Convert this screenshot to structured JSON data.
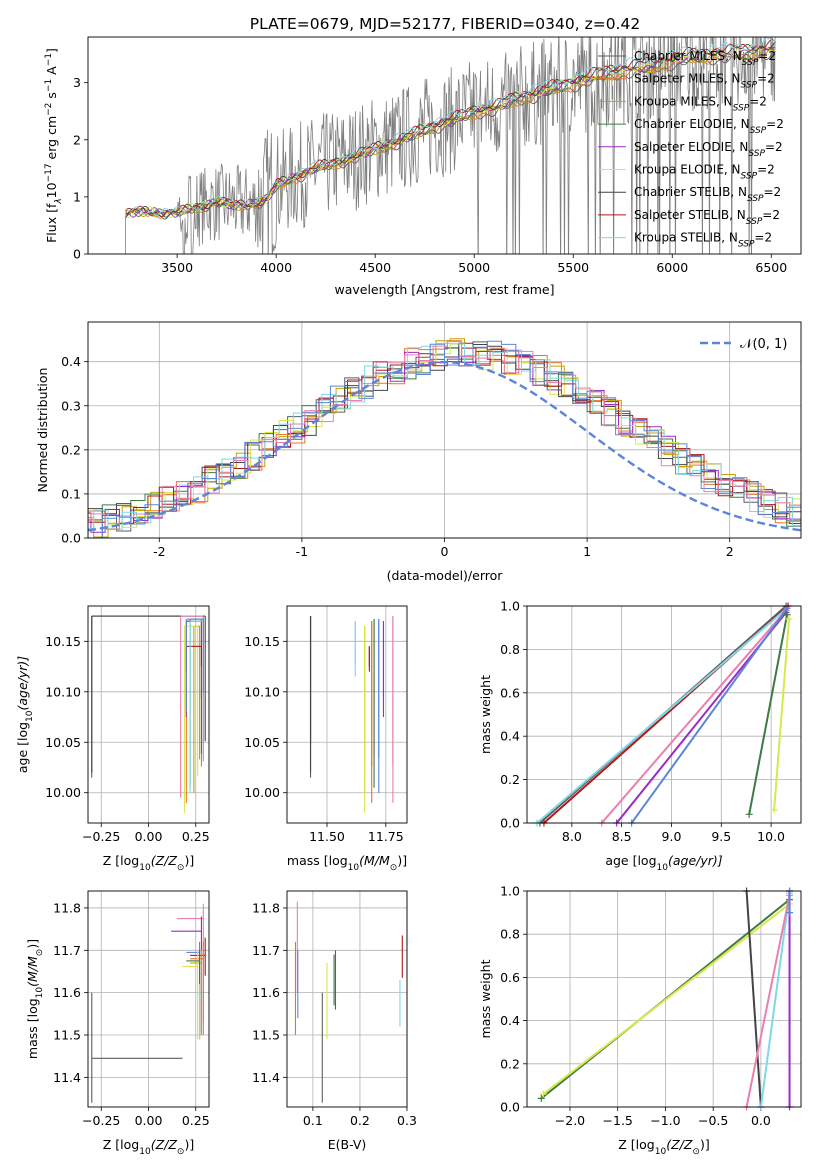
{
  "figure_title": "PLATE=0679, MJD=52177, FIBERID=0340, z=0.42",
  "colors": {
    "Chabrier MILES": "#5e5e5e",
    "Salpeter MILES": "#e8742c",
    "Kroupa MILES": "#c8a000",
    "Chabrier ELODIE": "#3c7a46",
    "Salpeter ELODIE": "#9a2cc4",
    "Kroupa ELODIE": "#d9e84a",
    "Chabrier STELIB": "#444444",
    "Salpeter STELIB": "#b01818",
    "Kroupa STELIB": "#7fd8e6",
    "Blue": "#5b86d8",
    "Pink": "#ea7fb0",
    "data": "#7f7f7f"
  },
  "chart_data": [
    {
      "id": "spectrum",
      "type": "line",
      "xlabel": "wavelength [Angstrom, rest frame]",
      "ylabel_main": "Flux [f",
      "ylabel_sub": "λ",
      "ylabel_rest": "10",
      "ylabel_sup": "−17",
      "ylabel_tail": " erg cm",
      "ylabel_sup2": "−2",
      "ylabel_mid2": " s",
      "ylabel_sup3": "−1",
      "ylabel_mid3": " A",
      "ylabel_sup4": "−1",
      "ylabel_end": "]",
      "xlim": [
        3050,
        6650
      ],
      "ylim": [
        0,
        3.8
      ],
      "xticks": [
        3500,
        4000,
        4500,
        5000,
        5500,
        6000,
        6500
      ],
      "yticks": [
        0,
        1,
        2,
        3
      ],
      "legend_placement": "upper right",
      "legend": [
        {
          "name": "Chabrier MILES",
          "suffix": "=2"
        },
        {
          "name": "Salpeter MILES",
          "suffix": "=2"
        },
        {
          "name": "Kroupa MILES",
          "suffix": "=2"
        },
        {
          "name": "Chabrier ELODIE",
          "suffix": "=2"
        },
        {
          "name": "Salpeter ELODIE",
          "suffix": "=2"
        },
        {
          "name": "Kroupa ELODIE",
          "suffix": "=2"
        },
        {
          "name": "Chabrier STELIB",
          "suffix": "=2"
        },
        {
          "name": "Salpeter STELIB",
          "suffix": "=2"
        },
        {
          "name": "Kroupa STELIB",
          "suffix": "=2"
        }
      ],
      "legend_n": "N",
      "legend_ssp": "SSP",
      "data_x_range": [
        3240,
        6520
      ],
      "model_anchors": [
        [
          3240,
          0.7
        ],
        [
          3300,
          0.75
        ],
        [
          3400,
          0.72
        ],
        [
          3500,
          0.72
        ],
        [
          3600,
          0.82
        ],
        [
          3700,
          0.9
        ],
        [
          3800,
          0.86
        ],
        [
          3900,
          0.88
        ],
        [
          3950,
          0.95
        ],
        [
          4000,
          1.2
        ],
        [
          4100,
          1.35
        ],
        [
          4200,
          1.5
        ],
        [
          4300,
          1.6
        ],
        [
          4400,
          1.7
        ],
        [
          4500,
          1.85
        ],
        [
          4600,
          1.95
        ],
        [
          4700,
          2.1
        ],
        [
          4800,
          2.25
        ],
        [
          4900,
          2.35
        ],
        [
          5000,
          2.5
        ],
        [
          5100,
          2.55
        ],
        [
          5200,
          2.7
        ],
        [
          5300,
          2.8
        ],
        [
          5400,
          2.9
        ],
        [
          5500,
          3.0
        ],
        [
          5600,
          3.1
        ],
        [
          5700,
          3.2
        ],
        [
          5800,
          3.25
        ],
        [
          5900,
          3.3
        ],
        [
          6000,
          3.4
        ],
        [
          6100,
          3.45
        ],
        [
          6200,
          3.5
        ],
        [
          6300,
          3.5
        ],
        [
          6400,
          3.55
        ],
        [
          6500,
          3.6
        ]
      ],
      "series_names": [
        "Chabrier MILES",
        "Salpeter MILES",
        "Kroupa MILES",
        "Chabrier ELODIE",
        "Salpeter ELODIE",
        "Kroupa ELODIE",
        "Chabrier STELIB",
        "Salpeter STELIB",
        "Kroupa STELIB"
      ]
    },
    {
      "id": "residuals",
      "type": "line",
      "xlabel": "(data-model)/error",
      "ylabel": "Normed distribution",
      "xlim": [
        -2.5,
        2.5
      ],
      "ylim": [
        0,
        0.49
      ],
      "xticks": [
        -2,
        -1,
        0,
        1,
        2
      ],
      "yticks": [
        0.0,
        0.1,
        0.2,
        0.3,
        0.4
      ],
      "grid": true,
      "legend_placement": "upper right",
      "legend_label": "𝒩(0, 1)",
      "gaussian": {
        "mean": 0,
        "sigma": 1
      },
      "hist_colors": [
        "Chabrier MILES",
        "Salpeter MILES",
        "Kroupa MILES",
        "Chabrier ELODIE",
        "Salpeter ELODIE",
        "Kroupa ELODIE",
        "Chabrier STELIB",
        "Salpeter STELIB",
        "Kroupa STELIB",
        "Blue",
        "Pink"
      ]
    },
    {
      "id": "age_vs_Z",
      "type": "scatter",
      "xlabel": "Z [log",
      "xlabel_sub": "10",
      "xlabel_rest": "(Z/Z",
      "xlabel_sub2": "⊙",
      "xlabel_end": ")]",
      "ylabel": "age  [log",
      "ylabel_sub": "10",
      "ylabel_rest": "(age/yr)]",
      "xlim": [
        -0.32,
        0.32
      ],
      "ylim": [
        9.97,
        10.185
      ],
      "xticks": [
        -0.25,
        0.0,
        0.25
      ],
      "xticklabels": [
        "−0.25",
        "0.00",
        "0.25"
      ],
      "yticks": [
        10.0,
        10.05,
        10.1,
        10.15
      ],
      "yticklabels": [
        "10.00",
        "10.05",
        "10.10",
        "10.15"
      ],
      "grid": true,
      "points": [
        {
          "c": "Chabrier MILES",
          "x": 0.29,
          "y": 10.175,
          "x0": -0.3,
          "y0": 10.015
        },
        {
          "c": "Salpeter MILES",
          "x": 0.28,
          "y": 10.17,
          "x0": 0.2,
          "y0": 9.99
        },
        {
          "c": "Kroupa MILES",
          "x": 0.27,
          "y": 10.165,
          "x0": 0.24,
          "y0": 10.0
        },
        {
          "c": "Chabrier ELODIE",
          "x": 0.28,
          "y": 10.172,
          "x0": 0.22,
          "y0": 10.005
        },
        {
          "c": "Salpeter ELODIE",
          "x": 0.28,
          "y": 10.17,
          "x0": 0.2,
          "y0": 10.075
        },
        {
          "c": "Kroupa ELODIE",
          "x": 0.26,
          "y": 10.165,
          "x0": 0.19,
          "y0": 9.98
        },
        {
          "c": "Chabrier STELIB",
          "x": 0.3,
          "y": 10.175,
          "x0": -0.3,
          "y0": 10.02
        },
        {
          "c": "Salpeter STELIB",
          "x": 0.28,
          "y": 10.145,
          "x0": 0.2,
          "y0": 10.12
        },
        {
          "c": "Kroupa STELIB",
          "x": 0.29,
          "y": 10.17,
          "x0": 0.22,
          "y0": 10.0
        },
        {
          "c": "Pink",
          "x": 0.29,
          "y": 10.175,
          "x0": 0.17,
          "y0": 9.995
        },
        {
          "c": "Blue",
          "x": 0.29,
          "y": 10.172,
          "x0": 0.2,
          "y0": 10.08
        }
      ]
    },
    {
      "id": "age_vs_mass",
      "type": "scatter",
      "xlabel": "mass [log",
      "xlabel_sub": "10",
      "xlabel_rest": "(M/M",
      "xlabel_sub2": "⊙",
      "xlabel_end": ")]",
      "xlim": [
        11.33,
        11.84
      ],
      "ylim": [
        9.97,
        10.185
      ],
      "xticks": [
        11.5,
        11.75
      ],
      "xticklabels": [
        "11.50",
        "11.75"
      ],
      "yticks": [
        10.0,
        10.05,
        10.1,
        10.15
      ],
      "yticklabels": [
        "10.00",
        "10.05",
        "10.10",
        "10.15"
      ],
      "grid": true,
      "points": [
        {
          "c": "Chabrier MILES",
          "x": 11.43,
          "y": 10.175,
          "x0": 11.43,
          "y0": 10.015
        },
        {
          "c": "Salpeter MILES",
          "x": 11.69,
          "y": 10.17,
          "x0": 11.69,
          "y0": 9.99
        },
        {
          "c": "Kroupa MILES",
          "x": 11.66,
          "y": 10.165,
          "x0": 11.66,
          "y0": 10.0
        },
        {
          "c": "Chabrier ELODIE",
          "x": 11.7,
          "y": 10.172,
          "x0": 11.7,
          "y0": 10.005
        },
        {
          "c": "Salpeter ELODIE",
          "x": 11.74,
          "y": 10.17,
          "x0": 11.74,
          "y0": 10.075
        },
        {
          "c": "Kroupa ELODIE",
          "x": 11.66,
          "y": 10.165,
          "x0": 11.66,
          "y0": 9.98
        },
        {
          "c": "Chabrier STELIB",
          "x": 11.43,
          "y": 10.175,
          "x0": 11.43,
          "y0": 10.02
        },
        {
          "c": "Salpeter STELIB",
          "x": 11.68,
          "y": 10.145,
          "x0": 11.68,
          "y0": 10.12
        },
        {
          "c": "Kroupa STELIB",
          "x": 11.62,
          "y": 10.17,
          "x0": 11.62,
          "y0": 10.115
        },
        {
          "c": "Pink",
          "x": 11.78,
          "y": 10.175,
          "x0": 11.78,
          "y0": 9.99
        },
        {
          "c": "Blue",
          "x": 11.72,
          "y": 10.172,
          "x0": 11.72,
          "y0": 10.0
        }
      ]
    },
    {
      "id": "weight_vs_age",
      "type": "line",
      "xlabel": "age  [log",
      "xlabel_sub": "10",
      "xlabel_rest": "(age/yr)]",
      "ylabel": "mass weight",
      "xlim": [
        7.55,
        10.3
      ],
      "ylim": [
        0,
        1.0
      ],
      "xticks": [
        8.0,
        8.5,
        9.0,
        9.5,
        10.0
      ],
      "xticklabels": [
        "8.0",
        "8.5",
        "9.0",
        "9.5",
        "10.0"
      ],
      "yticks": [
        0.0,
        0.2,
        0.4,
        0.6,
        0.8,
        1.0
      ],
      "yticklabels": [
        "0.0",
        "0.2",
        "0.4",
        "0.6",
        "0.8",
        "1.0"
      ],
      "grid": true,
      "lines": [
        {
          "c": "Chabrier MILES",
          "x1": 7.68,
          "x2": 10.15,
          "y1": 0.0,
          "y2": 1.0
        },
        {
          "c": "Salpeter STELIB",
          "x1": 7.72,
          "x2": 10.17,
          "y1": 0.0,
          "y2": 1.0
        },
        {
          "c": "Kroupa STELIB",
          "x1": 7.65,
          "x2": 10.16,
          "y1": 0.0,
          "y2": 0.99
        },
        {
          "c": "Pink",
          "x1": 8.3,
          "x2": 10.15,
          "y1": 0.0,
          "y2": 0.98
        },
        {
          "c": "Salpeter ELODIE",
          "x1": 8.45,
          "x2": 10.15,
          "y1": 0.0,
          "y2": 0.97
        },
        {
          "c": "Blue",
          "x1": 8.6,
          "x2": 10.16,
          "y1": 0.0,
          "y2": 0.99
        },
        {
          "c": "Chabrier ELODIE",
          "x1": 9.78,
          "x2": 10.16,
          "y1": 0.04,
          "y2": 0.96
        },
        {
          "c": "Kroupa ELODIE",
          "x1": 10.03,
          "x2": 10.18,
          "y1": 0.06,
          "y2": 0.94
        }
      ]
    },
    {
      "id": "mass_vs_Z",
      "type": "scatter",
      "xlabel": "Z [log",
      "xlabel_sub": "10",
      "xlabel_rest": "(Z/Z",
      "xlabel_sub2": "⊙",
      "xlabel_end": ")]",
      "ylabel": "mass [log",
      "ylabel_sub": "10",
      "ylabel_rest": "(M/M",
      "ylabel_sub2": "⊙",
      "ylabel_end": ")]",
      "xlim": [
        -0.32,
        0.32
      ],
      "ylim": [
        11.33,
        11.84
      ],
      "xticks": [
        -0.25,
        0.0,
        0.25
      ],
      "xticklabels": [
        "−0.25",
        "0.00",
        "0.25"
      ],
      "yticks": [
        11.4,
        11.5,
        11.6,
        11.7,
        11.8
      ],
      "yticklabels": [
        "11.4",
        "11.5",
        "11.6",
        "11.7",
        "11.8"
      ],
      "grid": true,
      "points": [
        {
          "c": "Chabrier MILES",
          "x": -0.3,
          "y": 11.445,
          "x1": 0.18,
          "y0": 11.34,
          "y1": 11.6
        },
        {
          "c": "Pink",
          "x": 0.29,
          "y": 11.775,
          "x1": 0.15,
          "y0": 11.53,
          "y1": 11.81
        },
        {
          "c": "Salpeter ELODIE",
          "x": 0.28,
          "y": 11.745,
          "x1": 0.12,
          "y0": 11.5,
          "y1": 11.78
        },
        {
          "c": "Blue",
          "x": 0.27,
          "y": 11.695,
          "x1": 0.2,
          "y0": 11.51,
          "y1": 11.72
        },
        {
          "c": "Salpeter STELIB",
          "x": 0.3,
          "y": 11.688,
          "x1": 0.22,
          "y0": 11.64,
          "y1": 11.73
        },
        {
          "c": "Salpeter MILES",
          "x": 0.29,
          "y": 11.68,
          "x1": 0.22,
          "y0": 11.5,
          "y1": 11.72
        },
        {
          "c": "Kroupa MILES",
          "x": 0.28,
          "y": 11.67,
          "x1": 0.22,
          "y0": 11.5,
          "y1": 11.7
        },
        {
          "c": "Kroupa ELODIE",
          "x": 0.26,
          "y": 11.662,
          "x1": 0.18,
          "y0": 11.49,
          "y1": 11.7
        },
        {
          "c": "Chabrier ELODIE",
          "x": 0.27,
          "y": 11.675,
          "x1": 0.2,
          "y0": 11.49,
          "y1": 11.7
        },
        {
          "c": "Kroupa STELIB",
          "x": 0.27,
          "y": 11.6,
          "x1": 0.26,
          "y0": 11.49,
          "y1": 11.62
        }
      ]
    },
    {
      "id": "mass_vs_ebv",
      "type": "scatter",
      "xlabel": "E(B-V)",
      "xlim": [
        0.045,
        0.3
      ],
      "ylim": [
        11.33,
        11.84
      ],
      "xticks": [
        0.1,
        0.2,
        0.3
      ],
      "xticklabels": [
        "0.1",
        "0.2",
        "0.3"
      ],
      "yticks": [
        11.4,
        11.5,
        11.6,
        11.7,
        11.8
      ],
      "yticklabels": [
        "11.4",
        "11.5",
        "11.6",
        "11.7",
        "11.8"
      ],
      "grid": true,
      "points": [
        {
          "c": "Pink",
          "x": 0.067,
          "y0": 11.6,
          "y1": 11.815
        },
        {
          "c": "Salpeter MILES",
          "x": 0.063,
          "y0": 11.5,
          "y1": 11.72
        },
        {
          "c": "Blue",
          "x": 0.068,
          "y0": 11.54,
          "y1": 11.7
        },
        {
          "c": "Chabrier MILES",
          "x": 0.12,
          "y0": 11.34,
          "y1": 11.6
        },
        {
          "c": "Kroupa ELODIE",
          "x": 0.13,
          "y0": 11.49,
          "y1": 11.67
        },
        {
          "c": "Salpeter ELODIE",
          "x": 0.148,
          "y0": 11.56,
          "y1": 11.7
        },
        {
          "c": "Chabrier ELODIE",
          "x": 0.145,
          "y0": 11.57,
          "y1": 11.69
        },
        {
          "c": "Kroupa STELIB",
          "x": 0.285,
          "y0": 11.52,
          "y1": 11.63
        },
        {
          "c": "Salpeter STELIB",
          "x": 0.29,
          "y0": 11.635,
          "y1": 11.735
        }
      ]
    },
    {
      "id": "weight_vs_Z",
      "type": "line",
      "xlabel": "Z [log",
      "xlabel_sub": "10",
      "xlabel_rest": "(Z/Z",
      "xlabel_sub2": "⊙",
      "xlabel_end": ")]",
      "ylabel": "mass weight",
      "xlim": [
        -2.45,
        0.42
      ],
      "ylim": [
        0,
        1.0
      ],
      "xticks": [
        -2.0,
        -1.5,
        -1.0,
        -0.5,
        0.0
      ],
      "xticklabels": [
        "−2.0",
        "−1.5",
        "−1.0",
        "−0.5",
        "0.0"
      ],
      "yticks": [
        0.0,
        0.2,
        0.4,
        0.6,
        0.8,
        1.0
      ],
      "yticklabels": [
        "0.0",
        "0.2",
        "0.4",
        "0.6",
        "0.8",
        "1.0"
      ],
      "grid": true,
      "lines": [
        {
          "c": "Chabrier ELODIE",
          "x1": -2.3,
          "x2": 0.3,
          "y1": 0.04,
          "y2": 0.96
        },
        {
          "c": "Kroupa ELODIE",
          "x1": -2.28,
          "x2": 0.3,
          "y1": 0.06,
          "y2": 0.94
        },
        {
          "c": "Chabrier STELIB",
          "x1": -0.15,
          "x2": 0.0,
          "y1": 1.0,
          "y2": 0.0
        },
        {
          "c": "Kroupa STELIB",
          "x1": 0.0,
          "x2": 0.3,
          "y1": 0.0,
          "y2": 0.99
        },
        {
          "c": "Pink",
          "x1": -0.15,
          "x2": 0.3,
          "y1": 0.0,
          "y2": 0.98
        },
        {
          "c": "Salpeter ELODIE",
          "x1": 0.3,
          "x2": 0.3,
          "y1": 0.0,
          "y2": 1.0
        },
        {
          "c": "Blue",
          "x1": 0.3,
          "x2": 0.3,
          "y1": 0.9,
          "y2": 1.0
        }
      ]
    }
  ]
}
